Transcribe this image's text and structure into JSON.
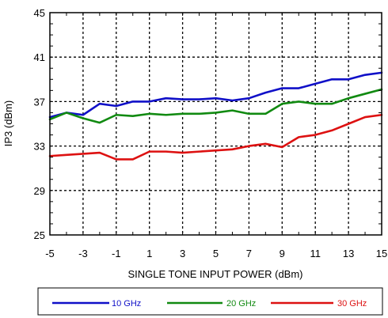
{
  "chart_data": {
    "type": "line",
    "xlabel": "SINGLE TONE INPUT POWER (dBm)",
    "ylabel": "IP3 (dBm)",
    "xlim": [
      -5,
      15
    ],
    "ylim": [
      25,
      45
    ],
    "xticks": [
      -5,
      -3,
      -1,
      1,
      3,
      5,
      7,
      9,
      11,
      13,
      15
    ],
    "yticks": [
      25,
      29,
      33,
      37,
      41,
      45
    ],
    "grid": true,
    "legend_position": "bottom",
    "x": [
      -5,
      -4,
      -3,
      -2,
      -1,
      0,
      1,
      2,
      3,
      4,
      5,
      6,
      7,
      8,
      9,
      10,
      11,
      12,
      13,
      14,
      15
    ],
    "series": [
      {
        "name": "10 GHz",
        "color": "#1010c8",
        "values": [
          35.6,
          36.0,
          35.8,
          36.8,
          36.6,
          37.0,
          37.0,
          37.3,
          37.2,
          37.2,
          37.3,
          37.1,
          37.3,
          37.8,
          38.2,
          38.2,
          38.6,
          39.0,
          39.0,
          39.4,
          39.6
        ]
      },
      {
        "name": "20 GHz",
        "color": "#118a11",
        "values": [
          35.4,
          36.0,
          35.5,
          35.1,
          35.8,
          35.7,
          35.9,
          35.8,
          35.9,
          35.9,
          36.0,
          36.2,
          35.9,
          35.9,
          36.8,
          37.0,
          36.8,
          36.8,
          37.3,
          37.7,
          38.1
        ]
      },
      {
        "name": "30 GHz",
        "color": "#dd1111",
        "values": [
          32.1,
          32.2,
          32.3,
          32.4,
          31.8,
          31.8,
          32.5,
          32.5,
          32.4,
          32.5,
          32.6,
          32.7,
          33.0,
          33.2,
          32.9,
          33.8,
          34.0,
          34.4,
          35.0,
          35.6,
          35.8
        ]
      }
    ]
  }
}
